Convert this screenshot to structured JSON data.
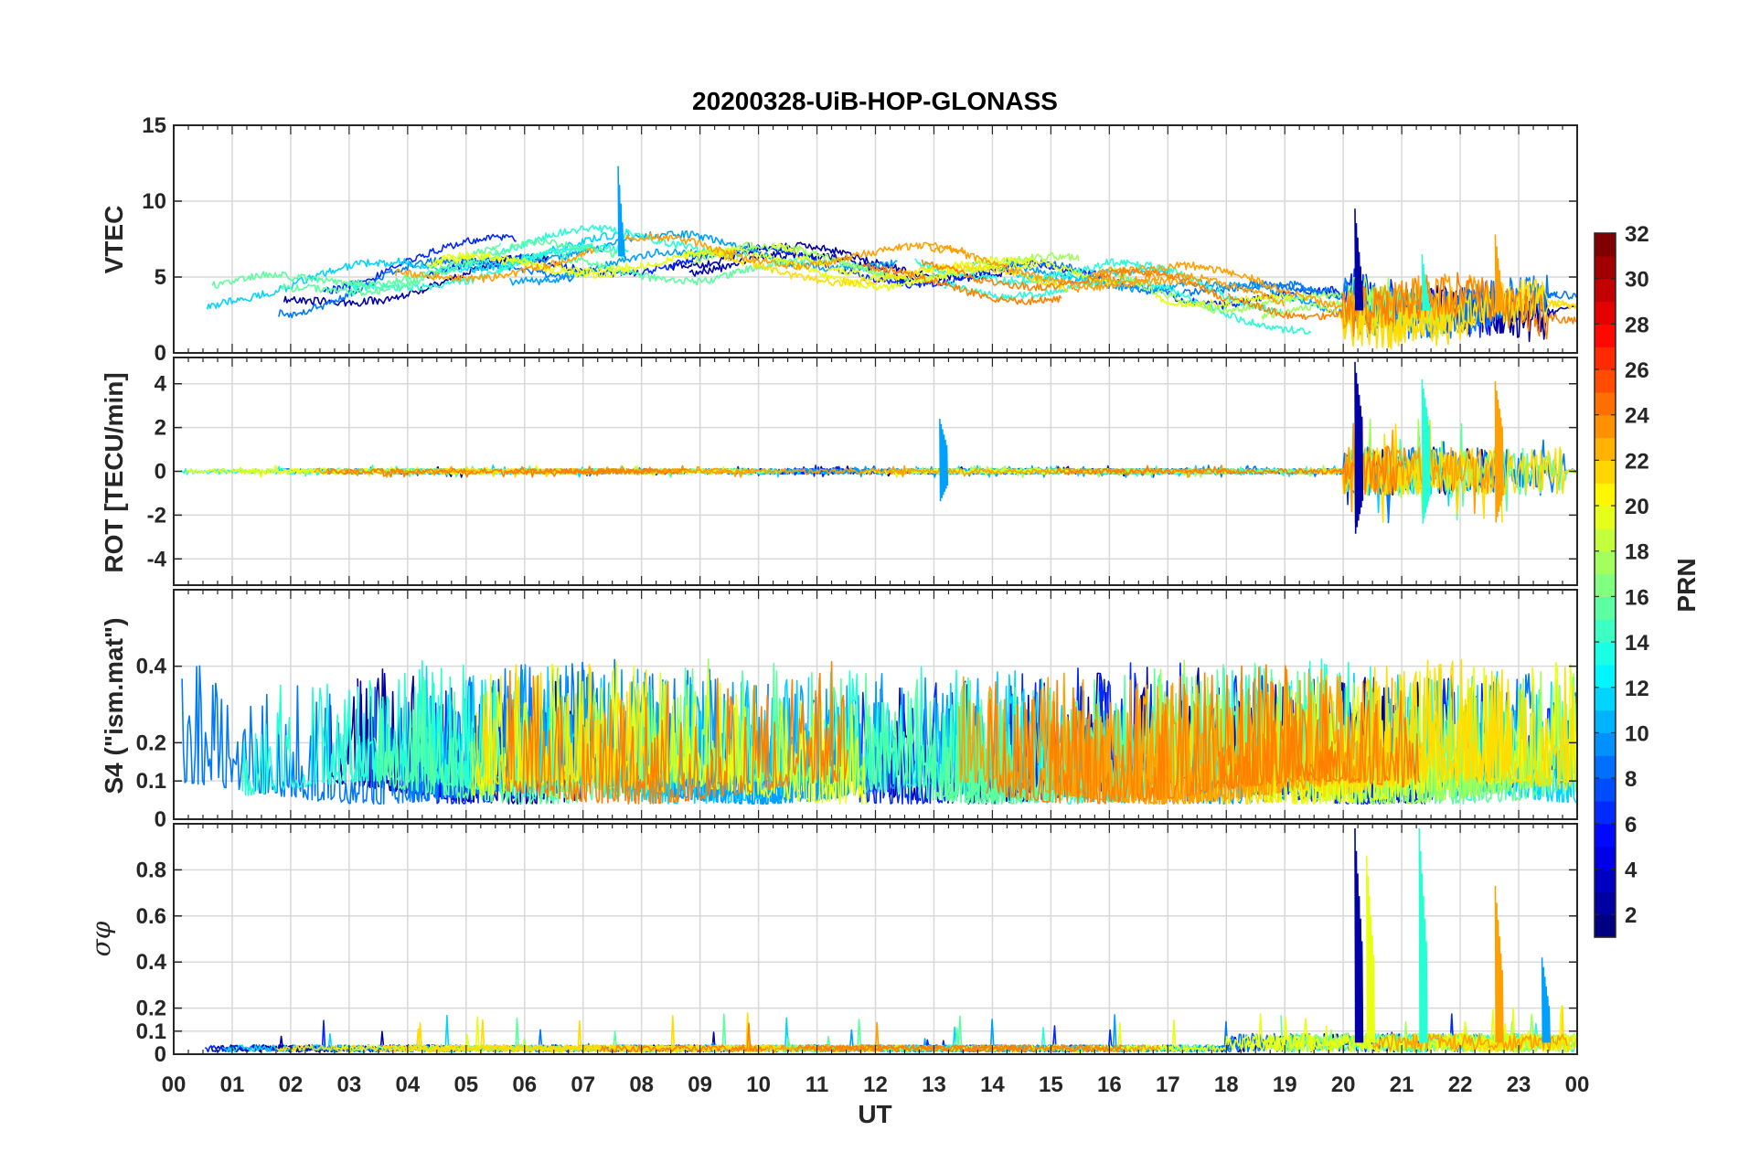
{
  "chart_data": {
    "type": "line",
    "title": "20200328-UiB-HOP-GLONASS",
    "xlabel": "UT",
    "x_range": [
      0,
      24
    ],
    "x_ticks": [
      "00",
      "01",
      "02",
      "03",
      "04",
      "05",
      "06",
      "07",
      "08",
      "09",
      "10",
      "11",
      "12",
      "13",
      "14",
      "15",
      "16",
      "17",
      "18",
      "19",
      "20",
      "21",
      "22",
      "23",
      "00"
    ],
    "grid": true,
    "panels": [
      {
        "name": "vtec",
        "ylabel": "VTEC",
        "ylim": [
          0,
          15
        ],
        "yticks": [
          "0",
          "5",
          "10",
          "15"
        ],
        "ytick_values": [
          0,
          5,
          10,
          15
        ],
        "kind": "vtec",
        "baseline": [
          [
            0,
            3.2
          ],
          [
            2,
            3.6
          ],
          [
            4,
            5.2
          ],
          [
            6,
            6.2
          ],
          [
            8,
            6.4
          ],
          [
            10,
            6.3
          ],
          [
            12,
            5.6
          ],
          [
            14,
            5.3
          ],
          [
            16,
            5.0
          ],
          [
            17,
            4.2
          ],
          [
            18,
            3.4
          ],
          [
            20,
            2.8
          ],
          [
            22,
            2.8
          ],
          [
            24,
            2.6
          ]
        ],
        "events": [
          [
            20.2,
            9.5
          ],
          [
            21.35,
            6.5
          ],
          [
            22.6,
            7.8
          ],
          [
            7.6,
            12.3
          ]
        ]
      },
      {
        "name": "rot",
        "ylabel": "ROT [TECU/min]",
        "ylim": [
          -5.2,
          5.2
        ],
        "yticks": [
          "-4",
          "-2",
          "0",
          "2",
          "4"
        ],
        "ytick_values": [
          -4,
          -2,
          0,
          2,
          4
        ],
        "kind": "rot",
        "events": [
          [
            20.2,
            5.0
          ],
          [
            21.35,
            4.2
          ],
          [
            22.6,
            4.1
          ],
          [
            13.1,
            2.4
          ]
        ]
      },
      {
        "name": "s4",
        "ylabel": "S4 (\"ism.mat\")",
        "ylim": [
          0,
          0.6
        ],
        "yticks": [
          "0",
          "0.1",
          "0.2",
          "0.4"
        ],
        "ytick_values": [
          0,
          0.1,
          0.2,
          0.4
        ],
        "kind": "s4"
      },
      {
        "name": "sigma",
        "ylabel": "σφ",
        "ylim": [
          0,
          1.0
        ],
        "yticks": [
          "0",
          "0.1",
          "0.2",
          "0.4",
          "0.6",
          "0.8"
        ],
        "ytick_values": [
          0,
          0.1,
          0.2,
          0.4,
          0.6,
          0.8
        ],
        "kind": "sigma",
        "events": [
          [
            20.2,
            0.98
          ],
          [
            21.3,
            0.98
          ],
          [
            22.6,
            0.73
          ],
          [
            23.4,
            0.42
          ],
          [
            20.4,
            0.86
          ]
        ]
      }
    ],
    "colorbar": {
      "label": "PRN",
      "range": [
        1,
        32
      ],
      "ticks": [
        "2",
        "4",
        "6",
        "8",
        "10",
        "12",
        "14",
        "16",
        "18",
        "20",
        "22",
        "24",
        "26",
        "28",
        "30",
        "32"
      ],
      "tick_values": [
        2,
        4,
        6,
        8,
        10,
        12,
        14,
        16,
        18,
        20,
        22,
        24,
        26,
        28,
        30,
        32
      ],
      "colormap": "jet"
    },
    "series": [
      {
        "prn": 2,
        "color": "#0000a6"
      },
      {
        "prn": 5,
        "color": "#0028ff"
      },
      {
        "prn": 8,
        "color": "#0078ff"
      },
      {
        "prn": 10,
        "color": "#00a0ff"
      },
      {
        "prn": 12,
        "color": "#00d4ff"
      },
      {
        "prn": 13,
        "color": "#26ffd4"
      },
      {
        "prn": 15,
        "color": "#5aff9e"
      },
      {
        "prn": 17,
        "color": "#9eff5a"
      },
      {
        "prn": 19,
        "color": "#e6ff12"
      },
      {
        "prn": 20,
        "color": "#ffdd00"
      },
      {
        "prn": 22,
        "color": "#ff9f00"
      },
      {
        "prn": 23,
        "color": "#ff8000"
      }
    ]
  }
}
